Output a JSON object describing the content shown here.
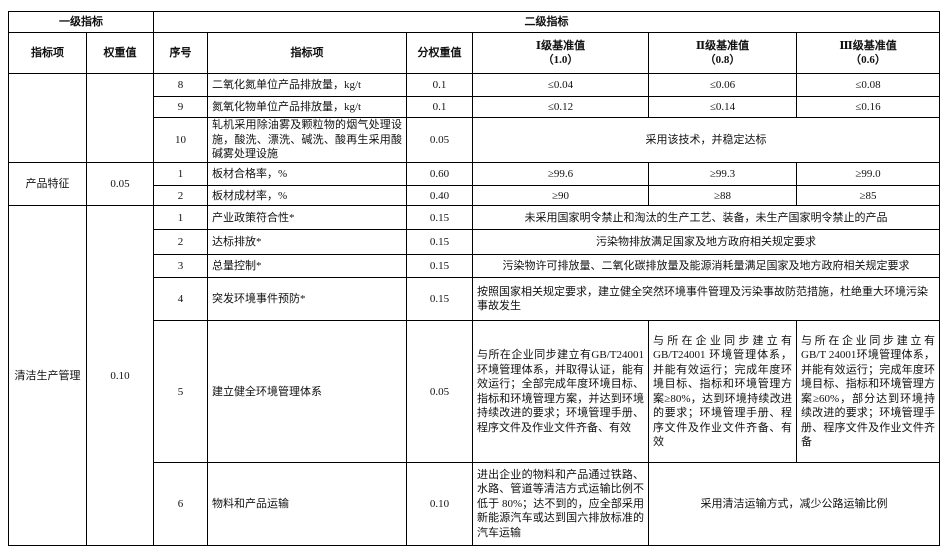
{
  "header": {
    "level1": "一级指标",
    "level2": "二级指标",
    "columns": [
      "指标项",
      "权重值",
      "序号",
      "指标项",
      "分权重值",
      "Ⅰ级基准值",
      "Ⅱ级基准值",
      "Ⅲ级基准值"
    ],
    "grade_weights": [
      "（1.0）",
      "（0.8）",
      "（0.6）"
    ]
  },
  "group_continued": {
    "rows": [
      {
        "no": "8",
        "item": "二氧化氮单位产品排放量，kg/t",
        "weight": "0.1",
        "g1": "≤0.04",
        "g2": "≤0.06",
        "g3": "≤0.08"
      },
      {
        "no": "9",
        "item": "氮氧化物单位产品排放量，kg/t",
        "weight": "0.1",
        "g1": "≤0.12",
        "g2": "≤0.14",
        "g3": "≤0.16"
      },
      {
        "no": "10",
        "item": "轧机采用除油雾及颗粒物的烟气处理设施，酸洗、漂洗、碱洗、酸再生采用酸碱雾处理设施",
        "weight": "0.05",
        "all": "采用该技术，并稳定达标"
      }
    ]
  },
  "group_product": {
    "name": "产品特征",
    "weight": "0.05",
    "rows": [
      {
        "no": "1",
        "item": "板材合格率，%",
        "weight": "0.60",
        "g1": "≥99.6",
        "g2": "≥99.3",
        "g3": "≥99.0"
      },
      {
        "no": "2",
        "item": "板材成材率，%",
        "weight": "0.40",
        "g1": "≥90",
        "g2": "≥88",
        "g3": "≥85"
      }
    ]
  },
  "group_clean": {
    "name": "清洁生产管理",
    "weight": "0.10",
    "rows": [
      {
        "no": "1",
        "item": "产业政策符合性*",
        "weight": "0.15",
        "all": "未采用国家明令禁止和淘汰的生产工艺、装备，未生产国家明令禁止的产品"
      },
      {
        "no": "2",
        "item": "达标排放*",
        "weight": "0.15",
        "all": "污染物排放满足国家及地方政府相关规定要求"
      },
      {
        "no": "3",
        "item": "总量控制*",
        "weight": "0.15",
        "all": "污染物许可排放量、二氧化碳排放量及能源消耗量满足国家及地方政府相关规定要求"
      },
      {
        "no": "4",
        "item": "突发环境事件预防*",
        "weight": "0.15",
        "all": "按照国家相关规定要求，建立健全突然环境事件管理及污染事故防范措施，杜绝重大环境污染事故发生"
      },
      {
        "no": "5",
        "item": "建立健全环境管理体系",
        "weight": "0.05",
        "g1": "与所在企业同步建立有GB/T24001环境管理体系，并取得认证，能有效运行；全部完成年度环境目标、指标和环境管理方案，并达到环境持续改进的要求；环境管理手册、程序文件及作业文件齐备、有效",
        "g2": "与所在企业同步建立有GB/T24001 环境管理体系，并能有效运行；完成年度环境目标、指标和环境管理方案≥80%，达到环境持续改进的要求；环境管理手册、程序文件及作业文件齐备、有效",
        "g3": "与所在企业同步建立有GB/T 24001环境管理体系，并能有效运行；完成年度环境目标、指标和环境管理方案≥60%，部分达到环境持续改进的要求；环境管理手册、程序文件及作业文件齐备"
      },
      {
        "no": "6",
        "item": "物料和产品运输",
        "weight": "0.10",
        "g1": "进出企业的物料和产品通过铁路、水路、管道等清洁方式运输比例不低于 80%；达不到的，应全部采用新能源汽车或达到国六排放标准的汽车运输",
        "g23": "采用清洁运输方式，减少公路运输比例"
      }
    ]
  }
}
